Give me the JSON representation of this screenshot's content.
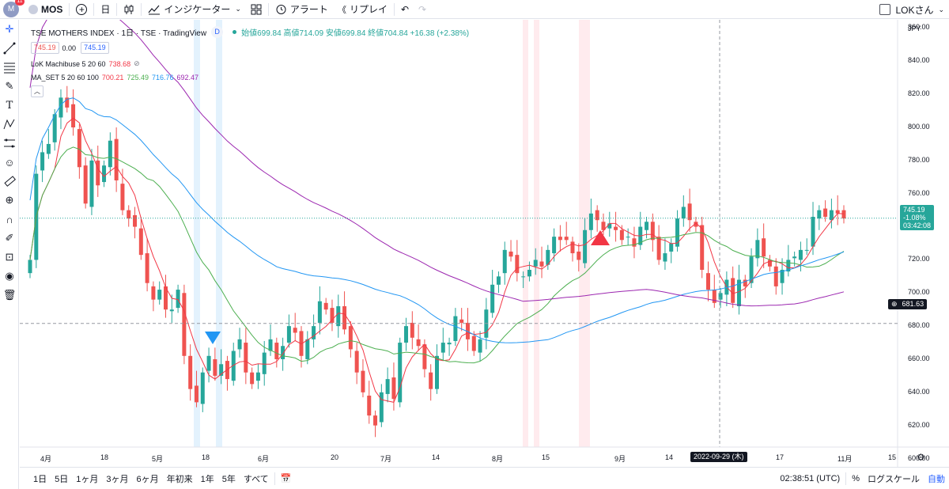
{
  "topbar": {
    "avatar_letter": "M",
    "notification_count": "11",
    "symbol": "MOS",
    "add_symbol": "+",
    "interval": "日",
    "indicators": "インジケーター",
    "alert": "アラート",
    "replay": "リプレイ",
    "user": "LOKさん"
  },
  "legend": {
    "title": "TSE MOTHERS INDEX · 1日 · TSE · TradingView",
    "d_badge": "D",
    "ohlc": "始値699.84 高値714.09 安値699.84 終値704.84 +16.38 (+2.38%)",
    "price_box_1": "745.19",
    "price_mid": "0.00",
    "price_box_2": "745.19",
    "ind1_name": "LoK Machibuse 5 20 60",
    "ind1_value": "738.68",
    "ind2_name": "MA_SET 5 20 60 100",
    "ind2_values": [
      "700.21",
      "725.49",
      "716.76",
      "692.47"
    ]
  },
  "axis": {
    "currency": "JPY",
    "y_ticks": [
      "860.00",
      "840.00",
      "820.00",
      "800.00",
      "780.00",
      "760.00",
      "740.00",
      "720.00",
      "700.00",
      "680.00",
      "660.00",
      "640.00",
      "620.00",
      "600.00"
    ],
    "x_ticks": [
      "4月",
      "18",
      "5月",
      "18",
      "6月",
      "20",
      "7月",
      "14",
      "8月",
      "15",
      "9月",
      "14",
      "17",
      "11月",
      "15"
    ],
    "crosshair_date": "2022-09-29 (木)",
    "crosshair_price": "681.63",
    "last_price": "745.19",
    "last_change": "-1.08%",
    "countdown": "03:42:08"
  },
  "bottombar": {
    "ranges": [
      "1日",
      "5日",
      "1ヶ月",
      "3ヶ月",
      "6ヶ月",
      "年初来",
      "1年",
      "5年",
      "すべて"
    ],
    "clock": "02:38:51 (UTC)",
    "percent": "%",
    "log": "ログスケール",
    "auto": "自動"
  },
  "colors": {
    "up": "#26a69a",
    "down": "#ef5350",
    "ma5": "#f23645",
    "ma20": "#4caf50",
    "ma60": "#2196f3",
    "ma100": "#9c27b0",
    "accent": "#2962ff"
  },
  "chart_data": {
    "type": "candlestick",
    "title": "TSE MOTHERS INDEX · 1日 · TSE · TradingView",
    "ylim": [
      595,
      865
    ],
    "x_tick_labels": [
      "4月",
      "18",
      "5月",
      "18",
      "6月",
      "20",
      "7月",
      "14",
      "8月",
      "15",
      "9月",
      "14",
      "17",
      "11月",
      "15"
    ],
    "close": [
      720,
      772,
      785,
      790,
      808,
      818,
      812,
      800,
      776,
      754,
      780,
      765,
      777,
      792,
      768,
      750,
      745,
      740,
      723,
      706,
      696,
      702,
      690,
      690,
      702,
      662,
      642,
      634,
      652,
      662,
      650,
      657,
      648,
      665,
      672,
      652,
      645,
      652,
      664,
      672,
      660,
      668,
      680,
      676,
      662,
      672,
      680,
      695,
      690,
      682,
      692,
      678,
      666,
      652,
      640,
      626,
      620,
      640,
      648,
      636,
      670,
      680,
      673,
      668,
      654,
      642,
      662,
      670,
      670,
      686,
      682,
      672,
      665,
      672,
      690,
      705,
      710,
      726,
      722,
      712,
      710,
      714,
      720,
      716,
      726,
      734,
      732,
      732,
      724,
      720,
      738,
      748,
      744,
      738,
      742,
      738,
      732,
      734,
      728,
      740,
      743,
      732,
      720,
      724,
      730,
      745,
      752,
      744,
      740,
      714,
      702,
      694,
      700,
      708,
      694,
      708,
      704,
      722,
      732,
      722,
      716,
      704,
      714,
      720,
      722,
      726,
      726,
      746,
      750,
      746,
      750,
      748,
      745
    ],
    "ma5_last": 700.21,
    "ma20_last": 725.49,
    "ma60_last": 716.76,
    "ma100_last": 692.47
  }
}
